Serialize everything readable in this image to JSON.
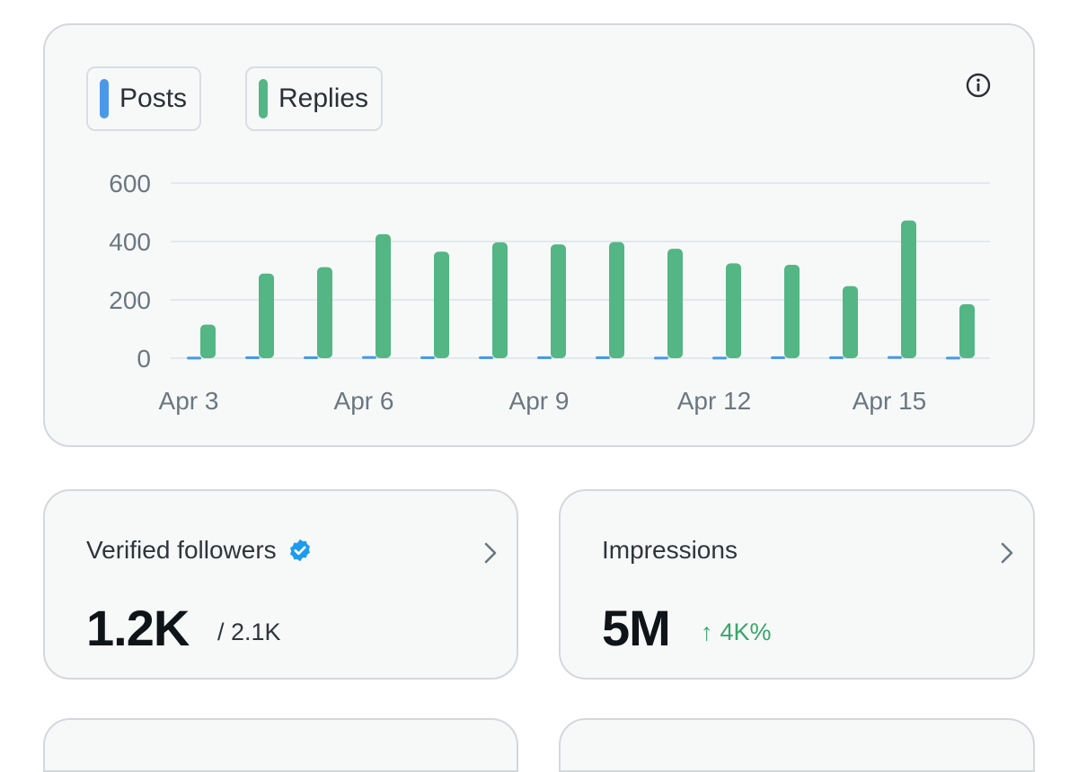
{
  "legend": {
    "posts_label": "Posts",
    "replies_label": "Replies",
    "posts_color": "#4a99e9",
    "replies_color": "#53b684"
  },
  "chart_data": {
    "type": "bar",
    "title": "",
    "xlabel": "",
    "ylabel": "",
    "ylim": [
      0,
      600
    ],
    "yticks": [
      "600",
      "400",
      "200",
      "0"
    ],
    "categories": [
      "Apr 3",
      "Apr 4",
      "Apr 5",
      "Apr 6",
      "Apr 7",
      "Apr 8",
      "Apr 9",
      "Apr 10",
      "Apr 11",
      "Apr 12",
      "Apr 13",
      "Apr 14",
      "Apr 15",
      "Apr 16"
    ],
    "xtick_labels": [
      "Apr 3",
      "",
      "",
      "Apr 6",
      "",
      "",
      "Apr 9",
      "",
      "",
      "Apr 12",
      "",
      "",
      "Apr 15",
      ""
    ],
    "series": [
      {
        "name": "Posts",
        "color": "#4a99e9",
        "values": [
          2,
          3,
          3,
          4,
          3,
          3,
          3,
          3,
          2,
          2,
          3,
          3,
          4,
          2
        ]
      },
      {
        "name": "Replies",
        "color": "#53b684",
        "values": [
          115,
          290,
          312,
          425,
          365,
          397,
          390,
          398,
          375,
          325,
          320,
          247,
          472,
          185
        ]
      }
    ],
    "grid": true
  },
  "info_icon": "info-icon",
  "verified_followers": {
    "title": "Verified followers",
    "value": "1.2K",
    "total": "/ 2.1K",
    "badge_icon": "verified-badge-icon",
    "badge_color": "#1d9bf0"
  },
  "impressions": {
    "title": "Impressions",
    "value": "5M",
    "change_arrow": "↑",
    "change": "4K%",
    "change_color": "#3aa66b"
  }
}
